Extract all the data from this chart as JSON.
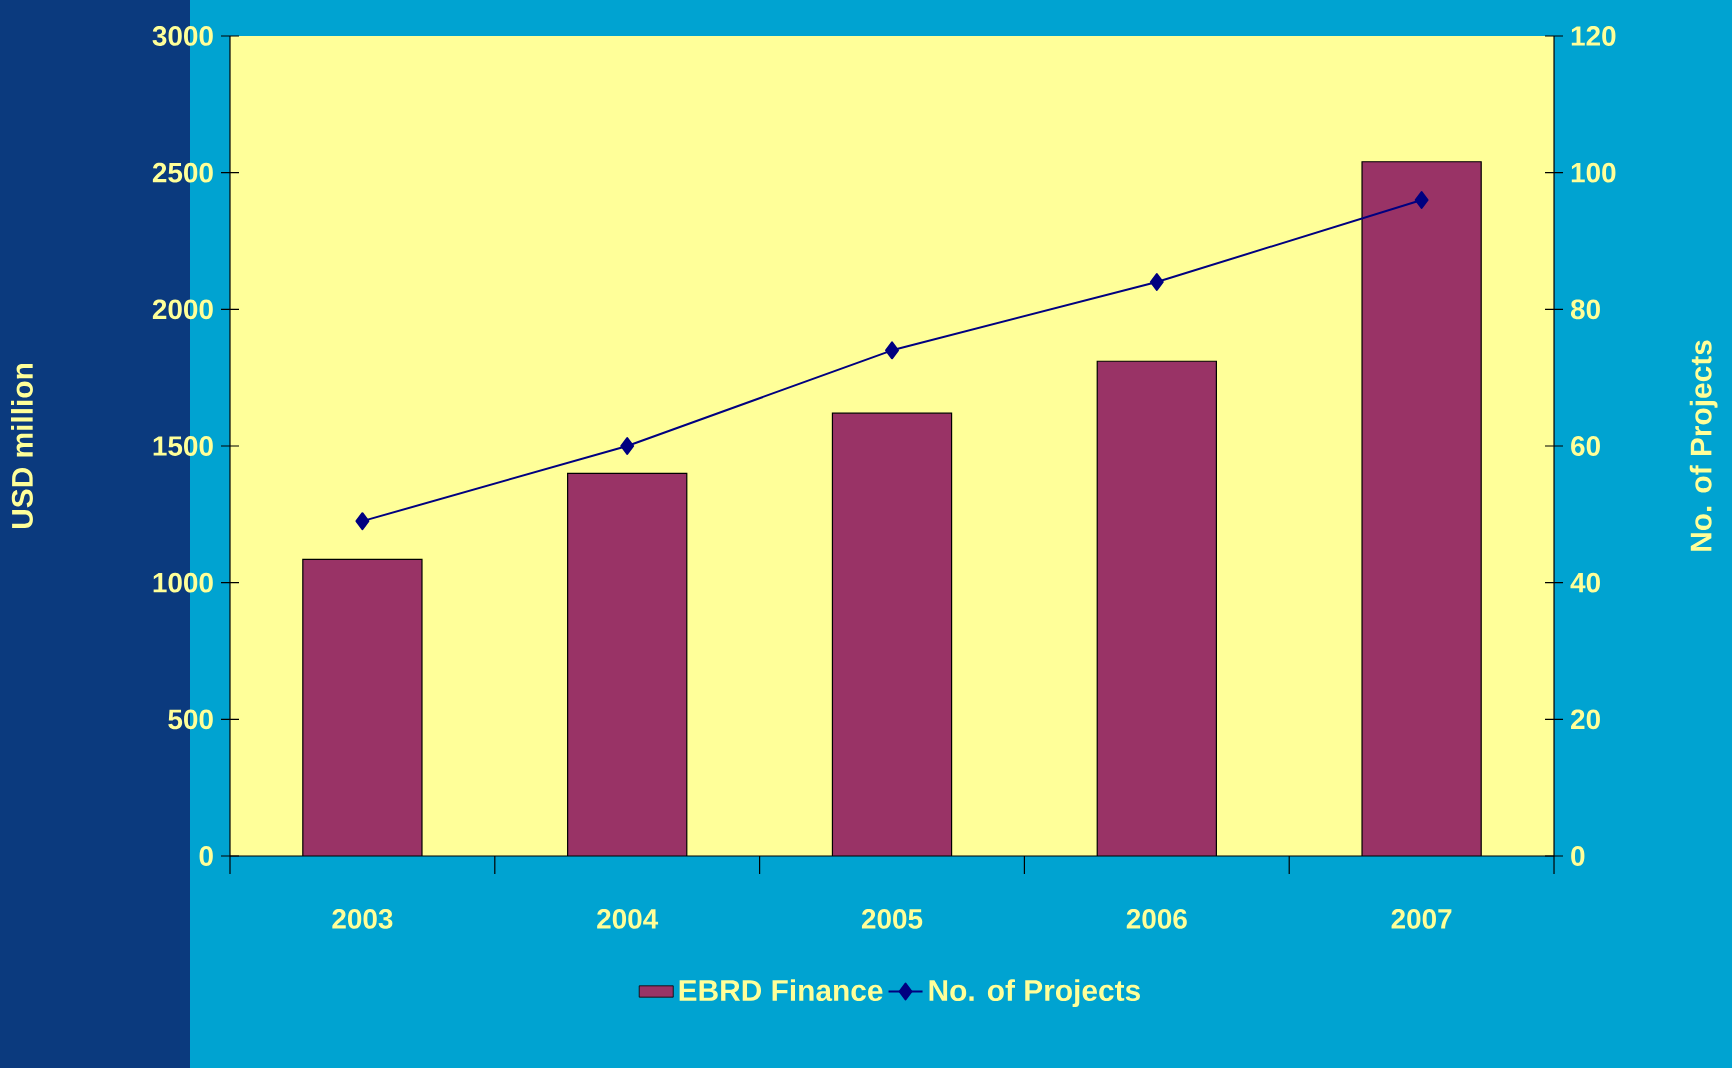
{
  "chart_data": {
    "type": "bar",
    "categories": [
      "2003",
      "2004",
      "2005",
      "2006",
      "2007"
    ],
    "ylabel": "USD million",
    "y2label": "No. of Projects",
    "ylim": [
      0,
      3000
    ],
    "yticks": [
      0,
      500,
      1000,
      1500,
      2000,
      2500,
      3000
    ],
    "y2lim": [
      0,
      120
    ],
    "y2ticks": [
      0,
      20,
      40,
      60,
      80,
      100,
      120
    ],
    "series": [
      {
        "name": "EBRD Finance",
        "color": "#993366",
        "values": [
          1085,
          1400,
          1620,
          1810,
          2540
        ]
      },
      {
        "name": "No. of Projects",
        "type": "line",
        "axis": "y2",
        "color": "#000080",
        "marker": "diamond",
        "line_style": "solid",
        "values": [
          49,
          60,
          74,
          84,
          96
        ]
      }
    ],
    "grid": false,
    "legend": "bottom"
  }
}
